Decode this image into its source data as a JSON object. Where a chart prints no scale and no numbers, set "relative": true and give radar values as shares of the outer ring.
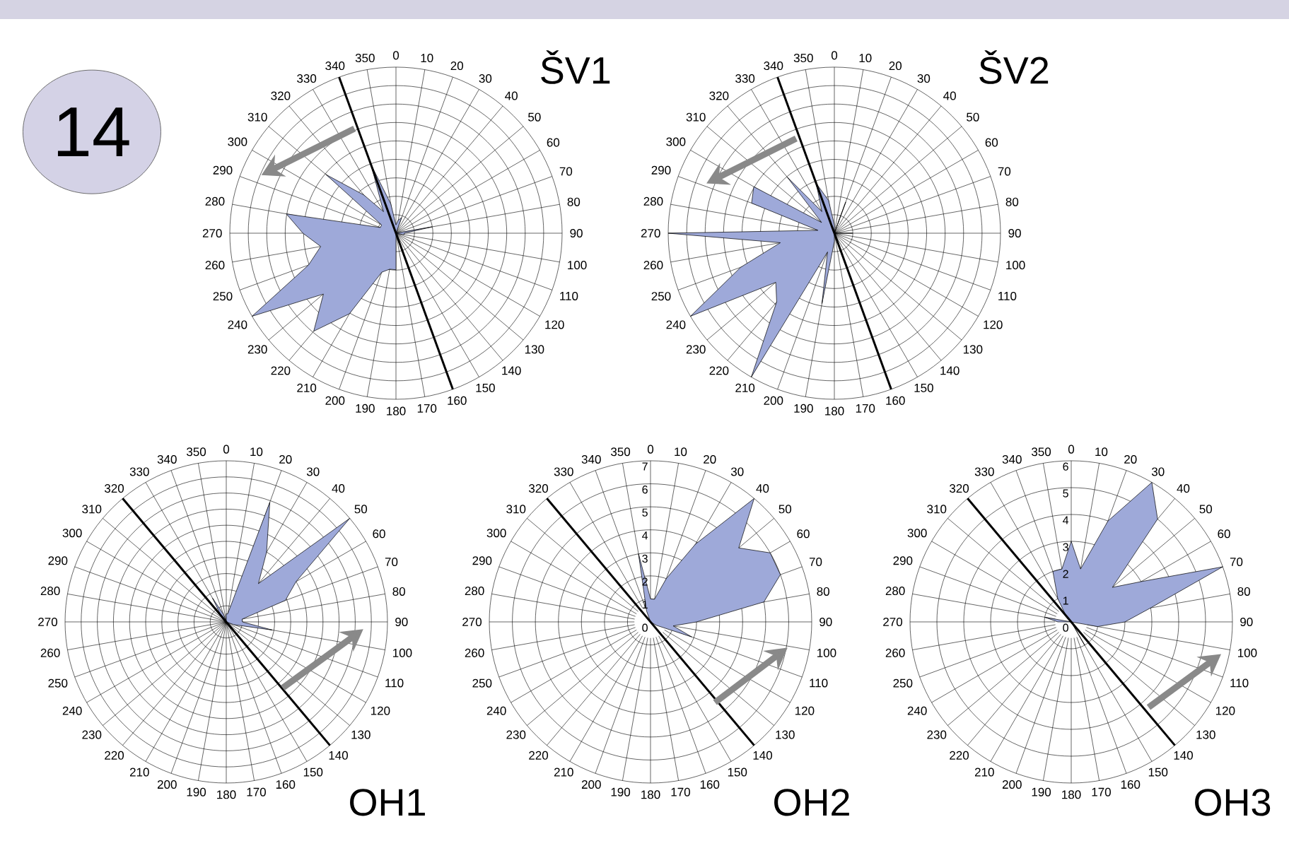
{
  "chart_data": [
    {
      "type": "radar",
      "title": "ŠV1",
      "annotations": [
        "14"
      ],
      "categories": [
        "0",
        "10",
        "20",
        "30",
        "40",
        "50",
        "60",
        "70",
        "80",
        "90",
        "100",
        "110",
        "120",
        "130",
        "140",
        "150",
        "160",
        "170",
        "180",
        "190",
        "200",
        "210",
        "220",
        "230",
        "240",
        "250",
        "260",
        "270",
        "280",
        "290",
        "300",
        "310",
        "320",
        "330",
        "340",
        "350"
      ],
      "relative": true,
      "grid": true,
      "series": [
        {
          "color": "#9ea9d9",
          "values": [
            0.05,
            0.08,
            0.1,
            0,
            0,
            0,
            0,
            0,
            0.22,
            0.05,
            0.05,
            0,
            0,
            0,
            0,
            0,
            0,
            0,
            0.22,
            0.22,
            0.25,
            0.56,
            0.77,
            0.57,
            1.0,
            0.56,
            0.46,
            0.56,
            0.67,
            0.1,
            0.1,
            0.55,
            0.3,
            0.15,
            0.44,
            0.18
          ]
        }
      ]
    },
    {
      "type": "radar",
      "title": "ŠV2",
      "categories": [
        "0",
        "10",
        "20",
        "30",
        "40",
        "50",
        "60",
        "70",
        "80",
        "90",
        "100",
        "110",
        "120",
        "130",
        "140",
        "150",
        "160",
        "170",
        "180",
        "190",
        "200",
        "210",
        "220",
        "230",
        "240",
        "250",
        "260",
        "270",
        "280",
        "290",
        "300",
        "310",
        "320",
        "330",
        "340",
        "350"
      ],
      "relative": true,
      "grid": true,
      "series": [
        {
          "color": "#9ea9d9",
          "values": [
            0.05,
            0,
            0.2,
            0,
            0,
            0,
            0,
            0,
            0,
            0.11,
            0,
            0,
            0,
            0,
            0,
            0,
            0,
            0,
            0.05,
            0.43,
            0.12,
            1.0,
            0.54,
            0.46,
            1.0,
            0.6,
            0.33,
            1.0,
            0.1,
            0.53,
            0.56,
            0.1,
            0.44,
            0.15,
            0.32,
            0.2
          ]
        }
      ]
    },
    {
      "type": "radar",
      "title": "OH1",
      "categories": [
        "0",
        "10",
        "20",
        "30",
        "40",
        "50",
        "60",
        "70",
        "80",
        "90",
        "100",
        "110",
        "120",
        "130",
        "140",
        "150",
        "160",
        "170",
        "180",
        "190",
        "200",
        "210",
        "220",
        "230",
        "240",
        "250",
        "260",
        "270",
        "280",
        "290",
        "300",
        "310",
        "320",
        "330",
        "340",
        "350"
      ],
      "relative": true,
      "grid": true,
      "series": [
        {
          "color": "#9ea9d9",
          "values": [
            0.05,
            0.05,
            0.79,
            0.5,
            0.31,
            1.0,
            0.5,
            0.39,
            0.1,
            0.1,
            0.29,
            0.05,
            0,
            0,
            0,
            0,
            0,
            0,
            0,
            0,
            0,
            0,
            0,
            0,
            0,
            0,
            0,
            0,
            0,
            0,
            0,
            0,
            0.05,
            0.17,
            0.05,
            0
          ]
        }
      ]
    },
    {
      "type": "radar",
      "title": "OH2",
      "categories": [
        "0",
        "10",
        "20",
        "30",
        "40",
        "50",
        "60",
        "70",
        "80",
        "90",
        "100",
        "110",
        "120",
        "130",
        "140",
        "150",
        "160",
        "170",
        "180",
        "190",
        "200",
        "210",
        "220",
        "230",
        "240",
        "250",
        "260",
        "270",
        "280",
        "290",
        "300",
        "310",
        "320",
        "330",
        "340",
        "350"
      ],
      "ylim": [
        0,
        7
      ],
      "yticks": [
        0,
        1,
        2,
        3,
        4,
        5,
        6,
        7
      ],
      "grid": true,
      "series": [
        {
          "color": "#9ea9d9",
          "values": [
            1.0,
            1.0,
            2.0,
            3.9,
            7.0,
            5.0,
            6.0,
            6.0,
            5.0,
            2.0,
            1.0,
            1.9,
            0.3,
            0,
            0,
            0,
            0,
            0,
            0,
            0,
            0,
            0,
            0,
            0,
            0,
            0,
            0,
            0,
            0,
            0,
            0,
            0,
            0,
            0,
            0.5,
            3.0
          ]
        }
      ]
    },
    {
      "type": "radar",
      "title": "OH3",
      "categories": [
        "0",
        "10",
        "20",
        "30",
        "40",
        "50",
        "60",
        "70",
        "80",
        "90",
        "100",
        "110",
        "120",
        "130",
        "140",
        "150",
        "160",
        "170",
        "180",
        "190",
        "200",
        "210",
        "220",
        "230",
        "240",
        "250",
        "260",
        "270",
        "280",
        "290",
        "300",
        "310",
        "320",
        "330",
        "340",
        "350"
      ],
      "ylim": [
        0,
        6
      ],
      "yticks": [
        0,
        1,
        2,
        3,
        4,
        5,
        6
      ],
      "grid": true,
      "series": [
        {
          "color": "#9ea9d9",
          "values": [
            3.0,
            2.0,
            4.0,
            6.0,
            5.0,
            2.0,
            3.0,
            6.0,
            3.0,
            2.0,
            1.0,
            0,
            0,
            0,
            0,
            1.0,
            0,
            0,
            0,
            0,
            0,
            0,
            0,
            0,
            0,
            0,
            0,
            0.5,
            1.0,
            0,
            0,
            0,
            0.3,
            1.0,
            2.0,
            2.0
          ]
        }
      ]
    }
  ]
}
